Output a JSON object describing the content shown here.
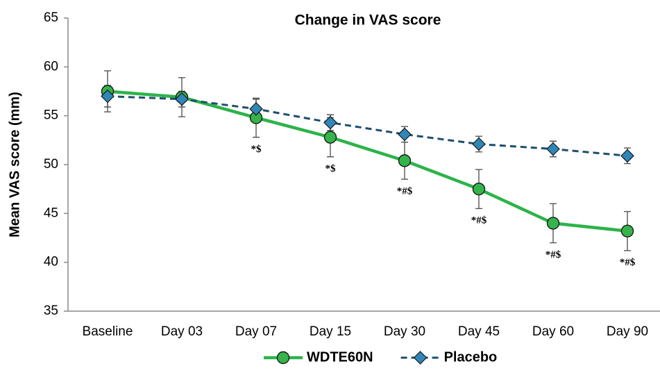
{
  "chart_data": {
    "type": "line",
    "title": "Change in VAS score",
    "y_label": "Mean VAS score (mm)",
    "categories": [
      "Baseline",
      "Day 03",
      "Day 07",
      "Day 15",
      "Day 30",
      "Day 45",
      "Day 60",
      "Day 90"
    ],
    "series": [
      {
        "name": "WDTE60N",
        "color": "#2db34a",
        "marker": "circle",
        "dashed": false,
        "values": [
          57.5,
          56.9,
          54.8,
          52.8,
          50.4,
          47.5,
          44.0,
          43.2
        ],
        "errors": [
          2.1,
          2.0,
          2.0,
          2.0,
          1.9,
          2.0,
          2.0,
          2.0
        ],
        "annotations": [
          null,
          null,
          "*$",
          "*$",
          "*#$",
          "*#$",
          "*#$",
          "*#$"
        ]
      },
      {
        "name": "Placebo",
        "color": "#1d4e6b",
        "marker": "diamond",
        "dashed": true,
        "values": [
          57.0,
          56.7,
          55.7,
          54.3,
          53.1,
          52.1,
          51.6,
          50.9
        ],
        "errors": [
          1.1,
          0.8,
          1.0,
          0.8,
          0.8,
          0.8,
          0.8,
          0.8
        ]
      }
    ],
    "ylim": [
      35,
      65
    ],
    "yticks": [
      35,
      40,
      45,
      50,
      55,
      60,
      65
    ],
    "grid": false,
    "legend": "bottom"
  }
}
